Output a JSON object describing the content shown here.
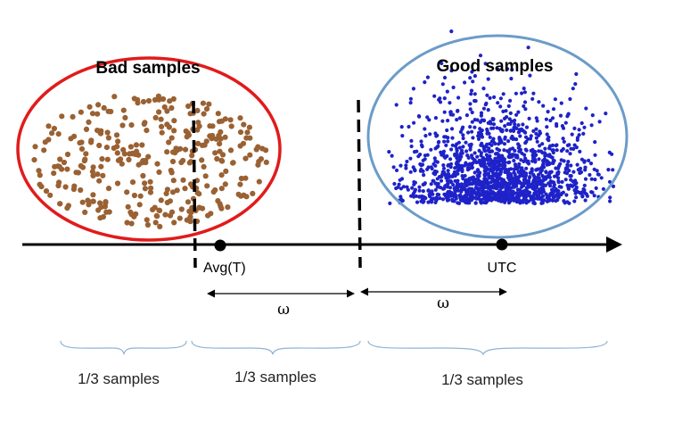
{
  "labels": {
    "bad_samples": "Bad samples",
    "good_samples": "Good samples",
    "avg_t": "Avg(T)",
    "utc": "UTC",
    "omega_left": "ω",
    "omega_right": "ω",
    "split_1": "1/3 samples",
    "split_2": "1/3 samples",
    "split_3": "1/3 samples"
  },
  "colors": {
    "bad_ellipse": "#e11b1b",
    "good_ellipse": "#6b9cc8",
    "bad_dots": "#9a6133",
    "good_dots": "#1e22c8",
    "axis": "#000000",
    "brace": "#8fb3d6"
  }
}
